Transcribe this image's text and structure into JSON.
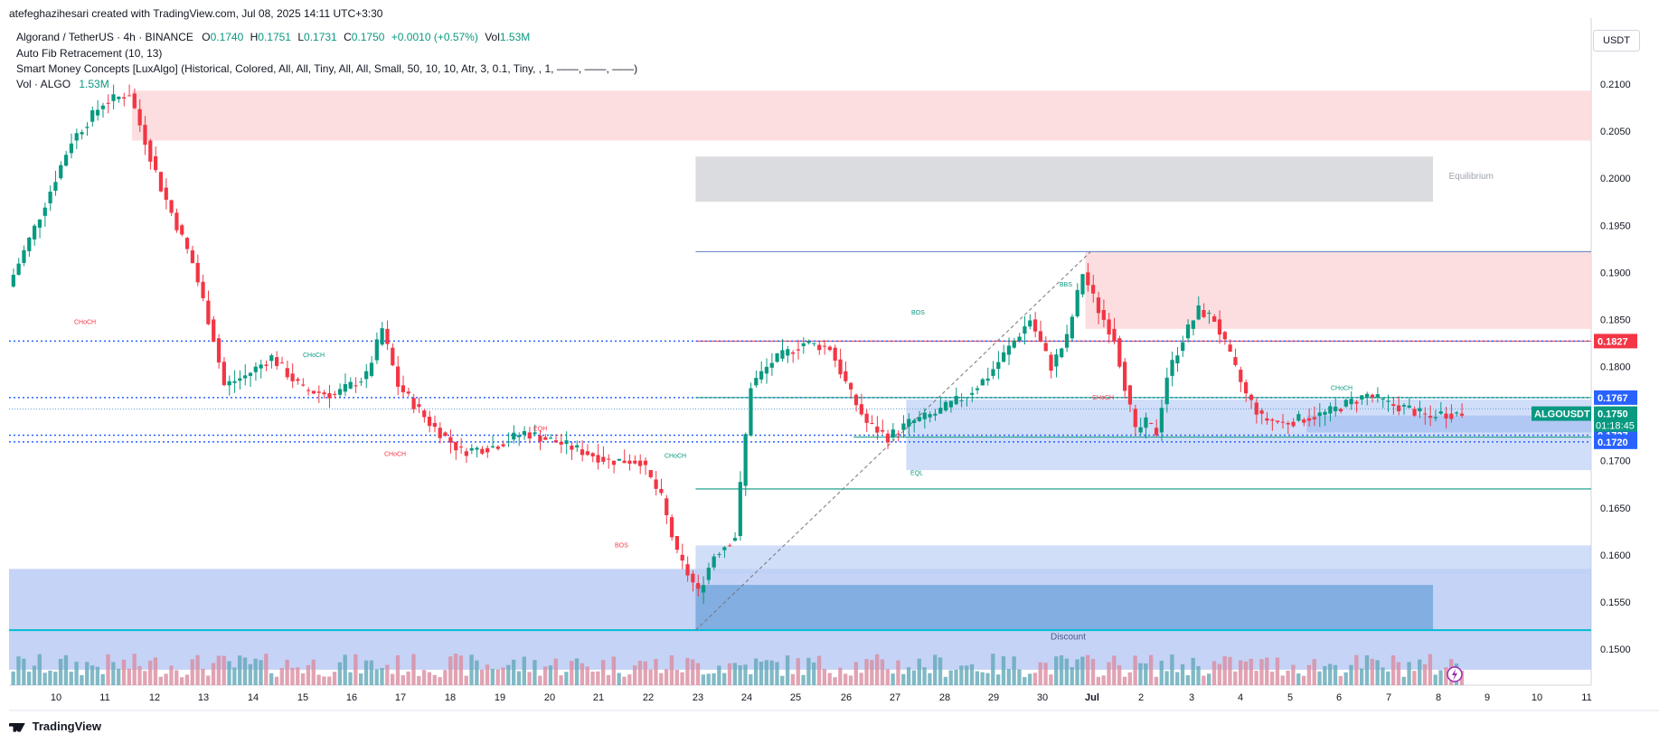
{
  "header": {
    "created_by": "atefeghazihesari created with TradingView.com, Jul 08, 2025 14:11 UTC+3:30"
  },
  "legend": {
    "symbol": "Algorand / TetherUS · 4h · BINANCE",
    "o_label": "O",
    "o_value": "0.1740",
    "h_label": "H",
    "h_value": "0.1751",
    "l_label": "L",
    "l_value": "0.1731",
    "c_label": "C",
    "c_value": "0.1750",
    "change": "+0.0010 (+0.57%)",
    "vol_label": "Vol",
    "vol_value": "1.53M",
    "indicator_1": "Auto Fib Retracement (10, 13)",
    "indicator_2": "Smart Money Concepts [LuxAlgo] (Historical, Colored, All, All, Tiny, All, All, Small, 50, 10, 10, Atr, 3, 0.1, Tiny, , 1, ——, ——, ——)",
    "indicator_3_label": "Vol · ALGO",
    "indicator_3_value": "1.53M"
  },
  "currency_button": "USDT",
  "brand": "TradingView",
  "colors": {
    "up": "#089981",
    "down": "#f23645",
    "vol_up": "#62a8b8",
    "vol_down": "#d98ca0",
    "premium_zone": "#fbd3d6",
    "equilibrium_zone": "#d7d8db",
    "discount_zone": "#9fb6f0"
  },
  "chart_data": {
    "type": "candlestick",
    "symbol": "ALGOUSDT",
    "interval": "4h",
    "ylim": [
      0.146,
      0.213
    ],
    "y_ticks": [
      "0.2100",
      "0.2050",
      "0.2000",
      "0.1950",
      "0.1900",
      "0.1850",
      "0.1800",
      "0.1750",
      "0.1700",
      "0.1650",
      "0.1600",
      "0.1550",
      "0.1500"
    ],
    "x_ticks": [
      "10",
      "11",
      "12",
      "13",
      "14",
      "15",
      "16",
      "17",
      "18",
      "19",
      "20",
      "21",
      "22",
      "23",
      "24",
      "25",
      "26",
      "27",
      "28",
      "29",
      "30",
      "Jul",
      "2",
      "3",
      "4",
      "5",
      "6",
      "7",
      "8",
      "9",
      "10",
      "11"
    ],
    "anchors": [
      [
        0,
        0.1885
      ],
      [
        6,
        0.196
      ],
      [
        12,
        0.204
      ],
      [
        18,
        0.208
      ],
      [
        23,
        0.209
      ],
      [
        29,
        0.199
      ],
      [
        35,
        0.191
      ],
      [
        39,
        0.183
      ],
      [
        41,
        0.178
      ],
      [
        45,
        0.179
      ],
      [
        50,
        0.181
      ],
      [
        56,
        0.1775
      ],
      [
        62,
        0.177
      ],
      [
        68,
        0.179
      ],
      [
        71,
        0.184
      ],
      [
        74,
        0.178
      ],
      [
        80,
        0.174
      ],
      [
        86,
        0.171
      ],
      [
        92,
        0.1715
      ],
      [
        98,
        0.173
      ],
      [
        104,
        0.172
      ],
      [
        109,
        0.171
      ],
      [
        114,
        0.17
      ],
      [
        120,
        0.17
      ],
      [
        124,
        0.166
      ],
      [
        127,
        0.16
      ],
      [
        131,
        0.156
      ],
      [
        134,
        0.16
      ],
      [
        138,
        0.162
      ],
      [
        141,
        0.178
      ],
      [
        145,
        0.1805
      ],
      [
        151,
        0.1825
      ],
      [
        156,
        0.182
      ],
      [
        160,
        0.177
      ],
      [
        163,
        0.174
      ],
      [
        167,
        0.1725
      ],
      [
        171,
        0.174
      ],
      [
        176,
        0.175
      ],
      [
        182,
        0.177
      ],
      [
        186,
        0.179
      ],
      [
        190,
        0.182
      ],
      [
        194,
        0.185
      ],
      [
        198,
        0.18
      ],
      [
        201,
        0.183
      ],
      [
        204,
        0.19
      ],
      [
        207,
        0.186
      ],
      [
        210,
        0.183
      ],
      [
        212,
        0.178
      ],
      [
        214,
        0.173
      ],
      [
        216,
        0.174
      ],
      [
        218,
        0.173
      ],
      [
        220,
        0.179
      ],
      [
        223,
        0.183
      ],
      [
        226,
        0.186
      ],
      [
        229,
        0.185
      ],
      [
        232,
        0.181
      ],
      [
        235,
        0.177
      ],
      [
        238,
        0.1745
      ],
      [
        242,
        0.174
      ],
      [
        246,
        0.1745
      ],
      [
        250,
        0.175
      ],
      [
        254,
        0.176
      ],
      [
        258,
        0.177
      ],
      [
        262,
        0.176
      ],
      [
        266,
        0.1755
      ],
      [
        270,
        0.1745
      ],
      [
        271,
        0.175
      ]
    ],
    "current_price": "0.1750",
    "countdown": "01:18:45",
    "price_labels": [
      {
        "value": 0.1827,
        "text": "0.1827",
        "color": "#f23645"
      },
      {
        "value": 0.1767,
        "text": "0.1767",
        "color": "#2962ff"
      },
      {
        "value": 0.1727,
        "text": "0.1727",
        "color": "#2962ff"
      },
      {
        "value": 0.172,
        "text": "0.1720",
        "color": "#2962ff"
      }
    ],
    "zones": {
      "premium_top": {
        "y": [
          0.204,
          0.2093
        ]
      },
      "equilibrium": {
        "y": [
          0.1975,
          0.2023
        ],
        "label": "Equilibrium"
      },
      "premium_right": {
        "y": [
          0.184,
          0.1922
        ]
      },
      "discount_right": {
        "y": [
          0.169,
          0.1765
        ]
      },
      "discount_bottom": {
        "y": [
          0.1478,
          0.1585
        ],
        "label": "Discount"
      }
    },
    "structure_labels": [
      {
        "text": "CHoCH",
        "value": 0.1845,
        "color": "#f23645"
      },
      {
        "text": "CHoCH",
        "value": 0.181,
        "color": "#089981"
      },
      {
        "text": "CHoCH",
        "value": 0.1705,
        "color": "#f23645"
      },
      {
        "text": "EQH",
        "value": 0.1732,
        "color": "#f23645"
      },
      {
        "text": "CHoCH",
        "value": 0.1703,
        "color": "#089981"
      },
      {
        "text": "BOS",
        "value": 0.1608,
        "color": "#f23645"
      },
      {
        "text": "BOS",
        "value": 0.1855,
        "color": "#089981"
      },
      {
        "text": "BBS",
        "value": 0.1885,
        "color": "#089981"
      },
      {
        "text": "EQL",
        "value": 0.1685,
        "color": "#089981"
      },
      {
        "text": "CHoCH",
        "value": 0.1765,
        "color": "#f23645"
      },
      {
        "text": "CHoCH",
        "value": 0.1775,
        "color": "#089981"
      }
    ]
  }
}
